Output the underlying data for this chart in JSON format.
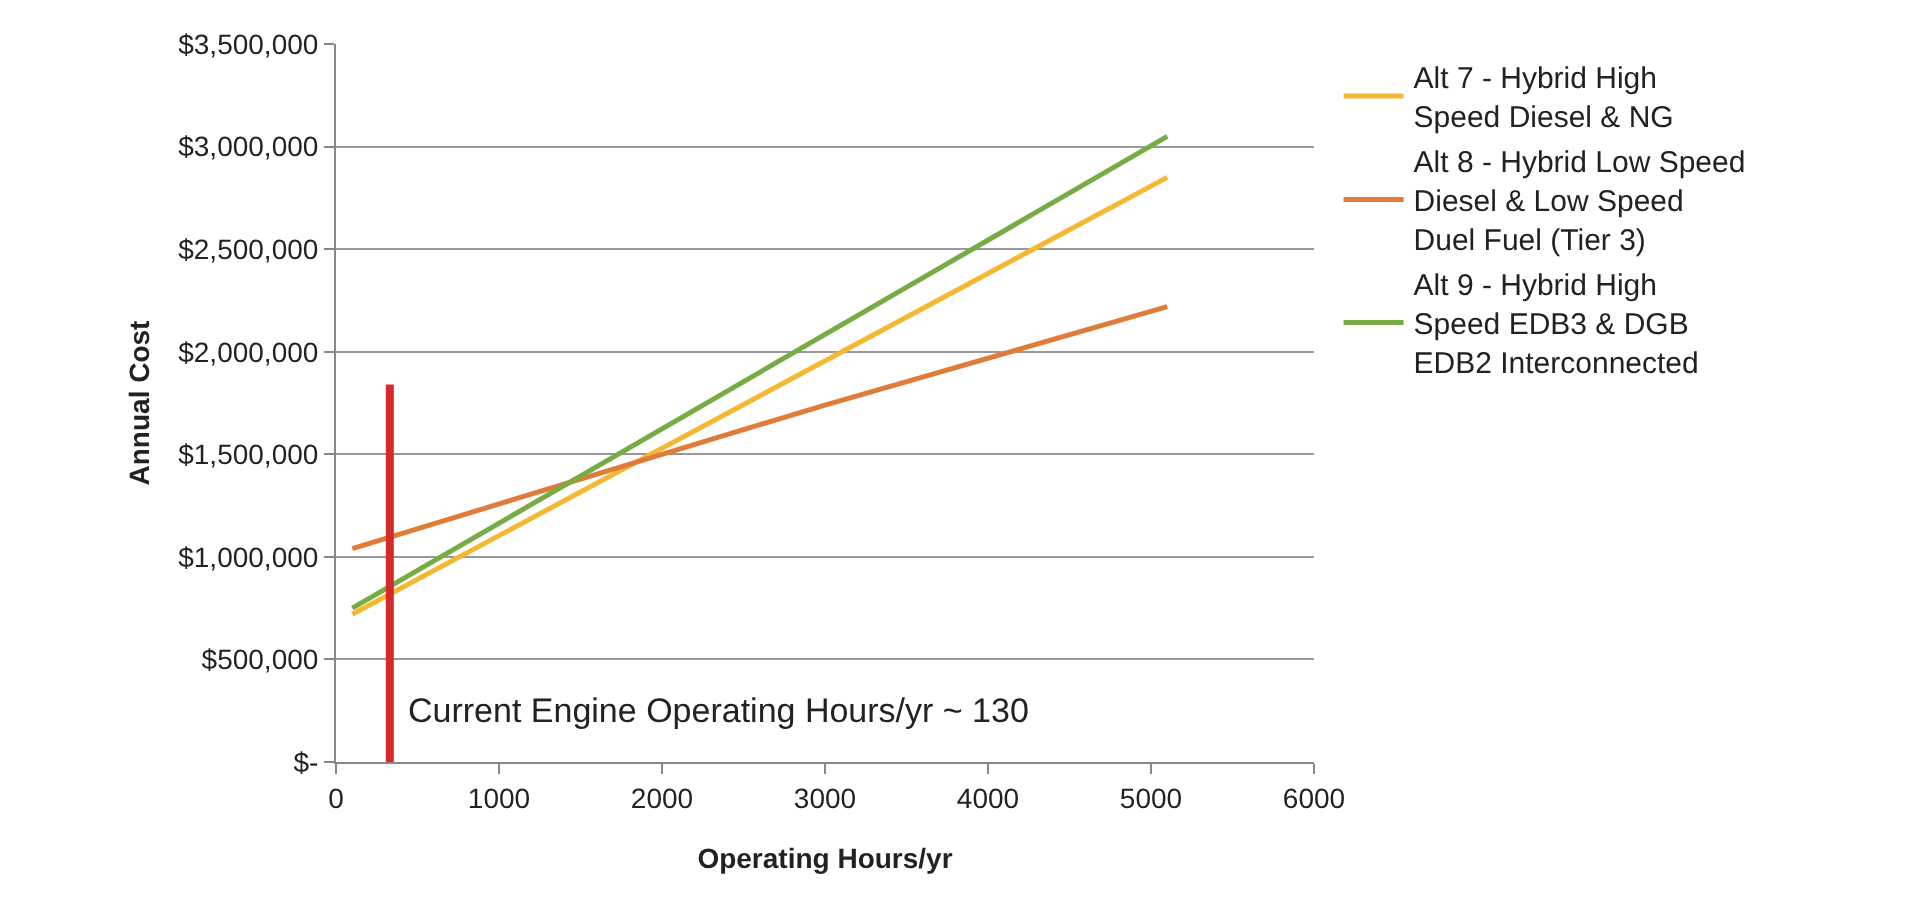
{
  "chart_data": {
    "type": "line",
    "xlabel": "Operating Hours/yr",
    "ylabel": "Annual Cost",
    "xlim": [
      0,
      6000
    ],
    "xticks": [
      0,
      1000,
      2000,
      3000,
      4000,
      5000,
      6000
    ],
    "ylim": [
      0,
      3500000
    ],
    "yticks": [
      {
        "value": 0,
        "label": "$-"
      },
      {
        "value": 500000,
        "label": "$500,000"
      },
      {
        "value": 1000000,
        "label": "$1,000,000"
      },
      {
        "value": 1500000,
        "label": "$1,500,000"
      },
      {
        "value": 2000000,
        "label": "$2,000,000"
      },
      {
        "value": 2500000,
        "label": "$2,500,000"
      },
      {
        "value": 3000000,
        "label": "$3,000,000"
      },
      {
        "value": 3500000,
        "label": "$3,500,000"
      }
    ],
    "grid": "y",
    "legend": "right",
    "marker": "none",
    "line_style": "solid",
    "series": [
      {
        "name": "Alt 7 - Hybrid High Speed Diesel & NG",
        "color": "#f5b833",
        "x": [
          100,
          5100
        ],
        "values": [
          720000,
          2850000
        ]
      },
      {
        "name": "Alt 8 - Hybrid Low Speed Diesel & Low Speed Duel Fuel (Tier 3)",
        "color": "#e07b39",
        "x": [
          100,
          2000,
          3000,
          5100
        ],
        "values": [
          1040000,
          1500000,
          1740000,
          2220000
        ]
      },
      {
        "name": "Alt 9 - Hybrid High Speed EDB3 & DGB EDB2 Interconnected",
        "color": "#77ac45",
        "x": [
          100,
          5100
        ],
        "values": [
          750000,
          3050000
        ]
      },
      {
        "color": "#d42a2a",
        "x": [
          330,
          330
        ],
        "values": [
          0,
          1840000
        ]
      }
    ],
    "annotations": [
      "Current Engine Operating Hours/yr ~ 130"
    ]
  }
}
